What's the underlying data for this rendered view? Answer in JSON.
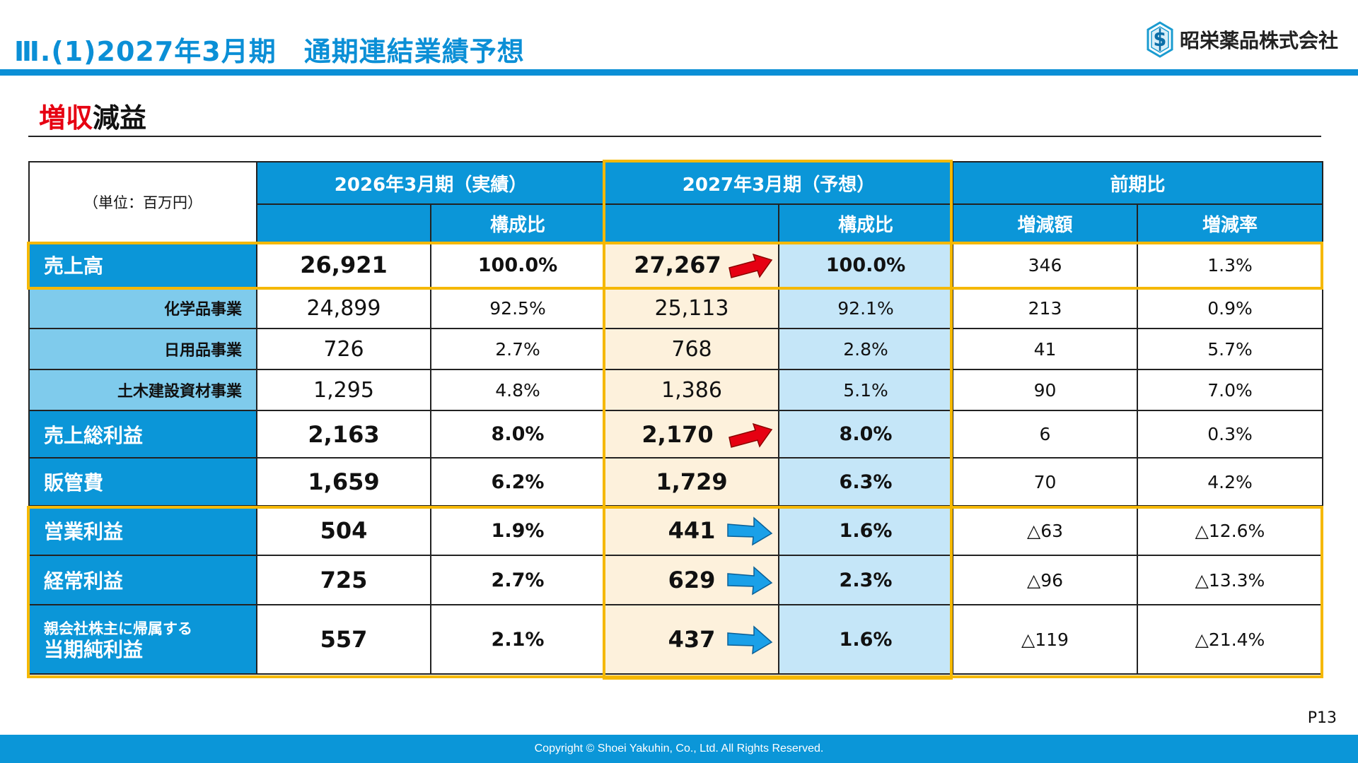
{
  "header": {
    "title": "Ⅲ.(1)2027年3月期　通期連結業績予想",
    "company": "昭栄薬品株式会社",
    "subtitle_red": "増収",
    "subtitle_black": "減益"
  },
  "table": {
    "unit_label": "（単位：百万円）",
    "col_groups": [
      "2026年3月期（実績）",
      "2027年3月期（予想）",
      "前期比"
    ],
    "sub_headers": [
      "",
      "構成比",
      "",
      "構成比",
      "増減額",
      "増減率"
    ],
    "rows": [
      {
        "label": "売上高",
        "v1": "26,921",
        "r1": "100.0%",
        "v2": "27,267",
        "r2": "100.0%",
        "diff": "346",
        "rate": "1.3%"
      },
      {
        "label": "化学品事業",
        "v1": "24,899",
        "r1": "92.5%",
        "v2": "25,113",
        "r2": "92.1%",
        "diff": "213",
        "rate": "0.9%"
      },
      {
        "label": "日用品事業",
        "v1": "726",
        "r1": "2.7%",
        "v2": "768",
        "r2": "2.8%",
        "diff": "41",
        "rate": "5.7%"
      },
      {
        "label": "土木建設資材事業",
        "v1": "1,295",
        "r1": "4.8%",
        "v2": "1,386",
        "r2": "5.1%",
        "diff": "90",
        "rate": "7.0%"
      },
      {
        "label": "売上総利益",
        "v1": "2,163",
        "r1": "8.0%",
        "v2": "2,170",
        "r2": "8.0%",
        "diff": "6",
        "rate": "0.3%"
      },
      {
        "label": "販管費",
        "v1": "1,659",
        "r1": "6.2%",
        "v2": "1,729",
        "r2": "6.3%",
        "diff": "70",
        "rate": "4.2%"
      },
      {
        "label": "営業利益",
        "v1": "504",
        "r1": "1.9%",
        "v2": "441",
        "r2": "1.6%",
        "diff": "△63",
        "rate": "△12.6%"
      },
      {
        "label": "経常利益",
        "v1": "725",
        "r1": "2.7%",
        "v2": "629",
        "r2": "2.3%",
        "diff": "△96",
        "rate": "△13.3%"
      },
      {
        "label_line1": "親会社株主に帰属する",
        "label_line2": "当期純利益",
        "v1": "557",
        "r1": "2.1%",
        "v2": "437",
        "r2": "1.6%",
        "diff": "△119",
        "rate": "△21.4%"
      }
    ]
  },
  "arrows": {
    "up_color": "#e60012",
    "down_color": "#1aa0e8"
  },
  "page_number": "P13",
  "footer": "Copyright © Shoei Yakuhin, Co., Ltd. All Rights Reserved."
}
